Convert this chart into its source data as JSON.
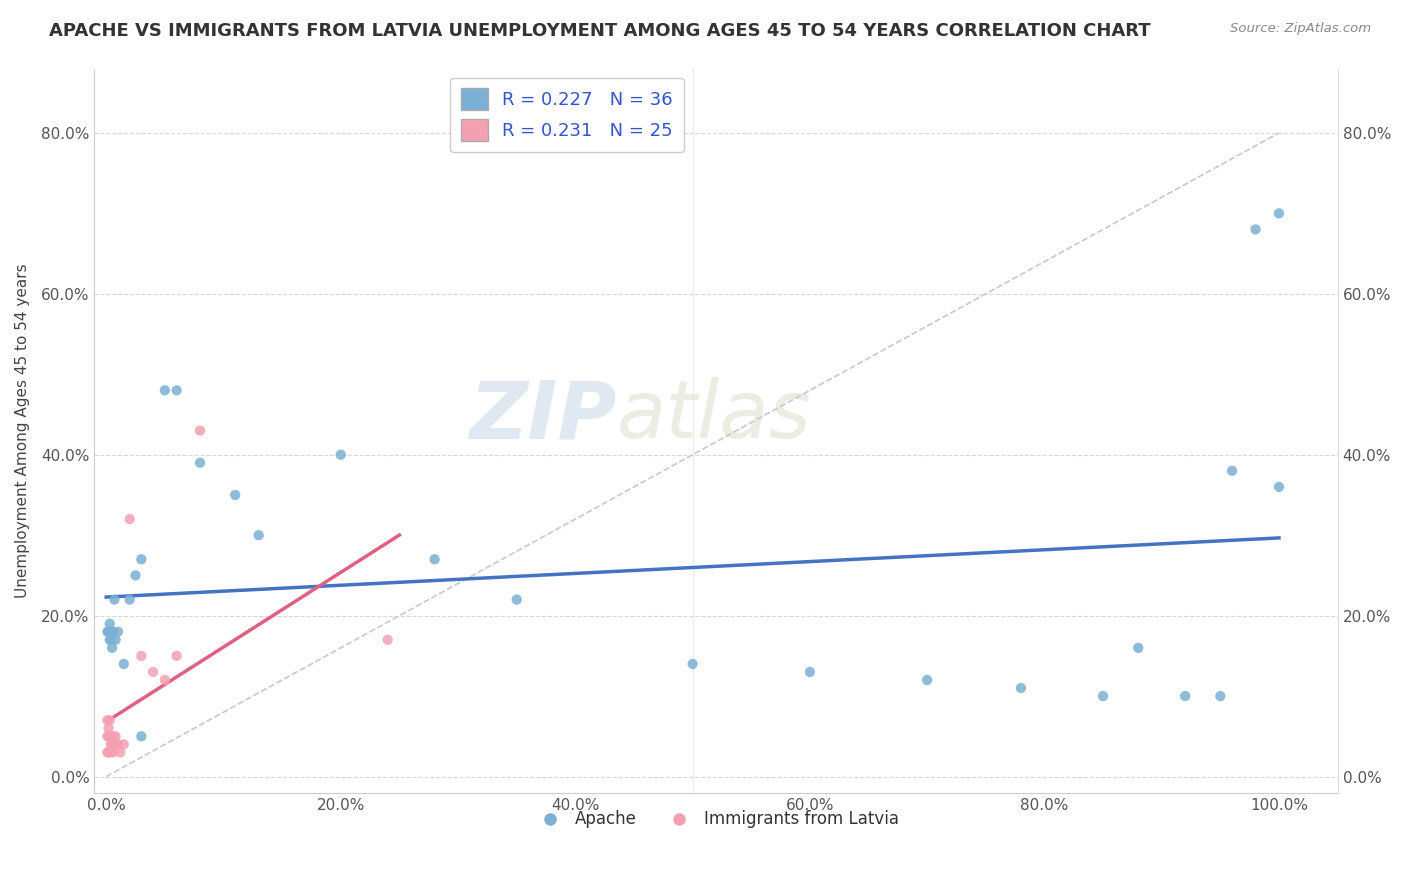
{
  "title": "APACHE VS IMMIGRANTS FROM LATVIA UNEMPLOYMENT AMONG AGES 45 TO 54 YEARS CORRELATION CHART",
  "source": "Source: ZipAtlas.com",
  "ylabel": "Unemployment Among Ages 45 to 54 years",
  "xlim": [
    -0.01,
    1.05
  ],
  "ylim": [
    -0.02,
    0.88
  ],
  "xticks": [
    0.0,
    0.2,
    0.4,
    0.6,
    0.8,
    1.0
  ],
  "xtick_labels": [
    "0.0%",
    "20.0%",
    "40.0%",
    "60.0%",
    "80.0%",
    "100.0%"
  ],
  "yticks": [
    0.0,
    0.2,
    0.4,
    0.6,
    0.8
  ],
  "ytick_labels": [
    "0.0%",
    "20.0%",
    "40.0%",
    "60.0%",
    "80.0%"
  ],
  "watermark": "ZIPatlas",
  "apache_color": "#7bafd4",
  "latvia_color": "#f4a0b0",
  "apache_line_color": "#4472c4",
  "latvia_line_color": "#e06080",
  "apache_R": 0.227,
  "apache_N": 36,
  "latvia_R": 0.231,
  "latvia_N": 25,
  "apache_x": [
    0.001,
    0.002,
    0.003,
    0.003,
    0.004,
    0.005,
    0.005,
    0.006,
    0.007,
    0.008,
    0.01,
    0.015,
    0.02,
    0.025,
    0.03,
    0.03,
    0.05,
    0.06,
    0.08,
    0.11,
    0.13,
    0.2,
    0.28,
    0.35,
    0.5,
    0.6,
    0.7,
    0.78,
    0.85,
    0.88,
    0.92,
    0.95,
    0.96,
    0.98,
    1.0,
    1.0
  ],
  "apache_y": [
    0.18,
    0.18,
    0.17,
    0.19,
    0.17,
    0.18,
    0.16,
    0.18,
    0.22,
    0.17,
    0.18,
    0.14,
    0.22,
    0.25,
    0.27,
    0.05,
    0.48,
    0.48,
    0.39,
    0.35,
    0.3,
    0.4,
    0.27,
    0.22,
    0.14,
    0.13,
    0.12,
    0.11,
    0.1,
    0.16,
    0.1,
    0.1,
    0.38,
    0.68,
    0.7,
    0.36
  ],
  "latvia_x": [
    0.001,
    0.001,
    0.001,
    0.002,
    0.002,
    0.002,
    0.003,
    0.003,
    0.003,
    0.004,
    0.005,
    0.006,
    0.006,
    0.007,
    0.008,
    0.01,
    0.012,
    0.015,
    0.02,
    0.03,
    0.04,
    0.05,
    0.06,
    0.08,
    0.24
  ],
  "latvia_y": [
    0.03,
    0.05,
    0.07,
    0.03,
    0.05,
    0.06,
    0.03,
    0.05,
    0.07,
    0.04,
    0.04,
    0.03,
    0.05,
    0.04,
    0.05,
    0.04,
    0.03,
    0.04,
    0.32,
    0.15,
    0.13,
    0.12,
    0.15,
    0.43,
    0.17
  ],
  "background_color": "#ffffff",
  "title_fontsize": 13,
  "axis_label_fontsize": 11,
  "tick_fontsize": 11
}
